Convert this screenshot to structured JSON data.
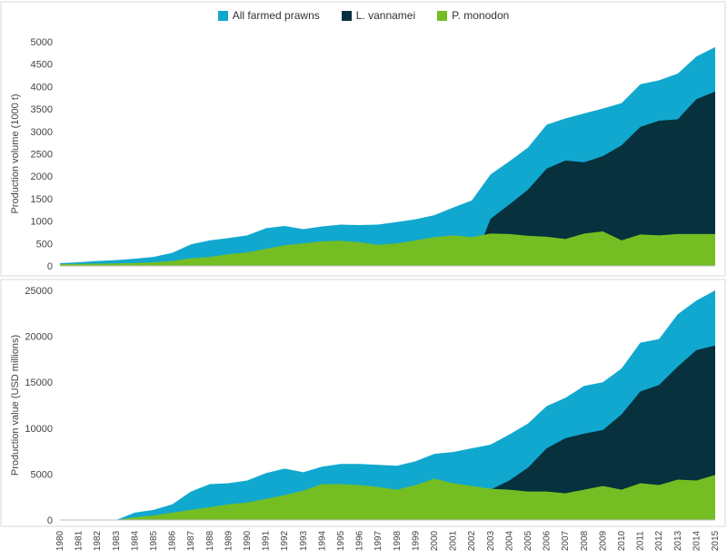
{
  "chart_data": [
    {
      "type": "area",
      "ylabel": "Production volume (1000 t)",
      "ylim": [
        0,
        5000
      ],
      "yticks": [
        0,
        500,
        1000,
        1500,
        2000,
        2500,
        3000,
        3500,
        4000,
        4500,
        5000
      ],
      "years": [
        1980,
        1981,
        1982,
        1983,
        1984,
        1985,
        1986,
        1987,
        1988,
        1989,
        1990,
        1991,
        1992,
        1993,
        1994,
        1995,
        1996,
        1997,
        1998,
        1999,
        2000,
        2001,
        2002,
        2003,
        2004,
        2005,
        2006,
        2007,
        2008,
        2009,
        2010,
        2011,
        2012,
        2013,
        2014,
        2015
      ],
      "series": [
        {
          "name": "All farmed prawns",
          "color": "#11a8cf",
          "values": [
            60,
            80,
            110,
            130,
            160,
            200,
            290,
            480,
            570,
            620,
            680,
            840,
            890,
            820,
            880,
            920,
            910,
            920,
            980,
            1040,
            1130,
            1300,
            1460,
            2040,
            2330,
            2640,
            3150,
            3290,
            3400,
            3510,
            3630,
            4050,
            4140,
            4290,
            4670,
            4880
          ]
        },
        {
          "name": "L. vannamei",
          "color": "#06313d",
          "values": [
            0,
            0,
            0,
            0,
            0,
            0,
            0,
            0,
            0,
            0,
            0,
            0,
            0,
            0,
            0,
            0,
            0,
            0,
            0,
            0,
            0,
            0,
            0,
            1050,
            1370,
            1700,
            2170,
            2350,
            2310,
            2450,
            2690,
            3100,
            3240,
            3270,
            3720,
            3890
          ]
        },
        {
          "name": "P. monodon",
          "color": "#74be23",
          "values": [
            40,
            45,
            50,
            55,
            65,
            80,
            110,
            170,
            200,
            260,
            300,
            380,
            460,
            500,
            550,
            560,
            530,
            470,
            500,
            570,
            640,
            680,
            640,
            720,
            710,
            670,
            650,
            600,
            720,
            770,
            570,
            700,
            680,
            710,
            710,
            710
          ]
        }
      ]
    },
    {
      "type": "area",
      "ylabel": "Production value (USD millions)",
      "ylim": [
        0,
        25000
      ],
      "yticks": [
        0,
        5000,
        10000,
        15000,
        20000,
        25000
      ],
      "years": [
        1980,
        1981,
        1982,
        1983,
        1984,
        1985,
        1986,
        1987,
        1988,
        1989,
        1990,
        1991,
        1992,
        1993,
        1994,
        1995,
        1996,
        1997,
        1998,
        1999,
        2000,
        2001,
        2002,
        2003,
        2004,
        2005,
        2006,
        2007,
        2008,
        2009,
        2010,
        2011,
        2012,
        2013,
        2014,
        2015
      ],
      "series": [
        {
          "name": "All farmed prawns",
          "color": "#11a8cf",
          "values": [
            0,
            0,
            0,
            0,
            800,
            1100,
            1700,
            3100,
            3900,
            4000,
            4300,
            5100,
            5600,
            5200,
            5800,
            6100,
            6100,
            6000,
            5900,
            6400,
            7200,
            7400,
            7800,
            8200,
            9300,
            10500,
            12400,
            13300,
            14600,
            15000,
            16500,
            19300,
            19700,
            22400,
            23900,
            25000
          ]
        },
        {
          "name": "L. vannamei",
          "color": "#06313d",
          "values": [
            0,
            0,
            0,
            0,
            0,
            0,
            0,
            0,
            0,
            0,
            0,
            0,
            0,
            0,
            0,
            0,
            0,
            0,
            0,
            0,
            0,
            0,
            0,
            3300,
            4300,
            5700,
            7800,
            8900,
            9400,
            9800,
            11500,
            14000,
            14700,
            16700,
            18500,
            19000
          ]
        },
        {
          "name": "P. monodon",
          "color": "#74be23",
          "values": [
            0,
            0,
            0,
            0,
            300,
            500,
            800,
            1100,
            1400,
            1700,
            1900,
            2300,
            2700,
            3200,
            3900,
            3900,
            3800,
            3600,
            3300,
            3800,
            4500,
            4000,
            3700,
            3400,
            3300,
            3100,
            3100,
            2900,
            3300,
            3700,
            3300,
            4000,
            3800,
            4400,
            4300,
            4900
          ]
        }
      ]
    }
  ]
}
